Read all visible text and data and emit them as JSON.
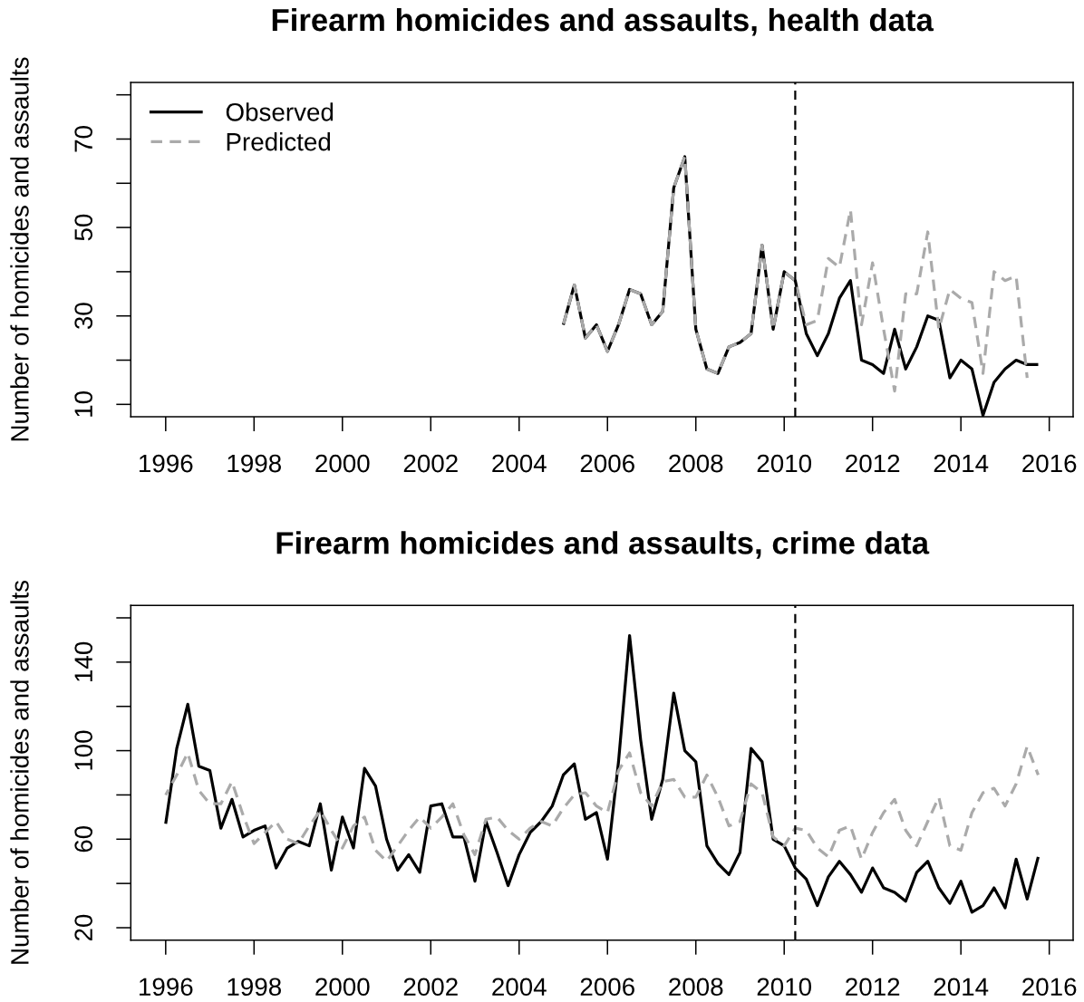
{
  "chart_data": [
    {
      "type": "line",
      "title": "Firearm homicides and assaults, health data",
      "ylabel": "Number of homicides and assaults",
      "x": [
        2005,
        2005.25,
        2005.5,
        2005.75,
        2006,
        2006.25,
        2006.5,
        2006.75,
        2007,
        2007.25,
        2007.5,
        2007.75,
        2008,
        2008.25,
        2008.5,
        2008.75,
        2009,
        2009.25,
        2009.5,
        2009.75,
        2010,
        2010.25,
        2010.5,
        2010.75,
        2011,
        2011.25,
        2011.5,
        2011.75,
        2012,
        2012.25,
        2012.5,
        2012.75,
        2013,
        2013.25,
        2013.5,
        2013.75,
        2014,
        2014.25,
        2014.5,
        2014.75,
        2015,
        2015.25,
        2015.5,
        2015.75
      ],
      "series": [
        {
          "name": "Observed",
          "color": "#000000",
          "line_style": "solid",
          "values": [
            28,
            37,
            25,
            28,
            22,
            28,
            36,
            35,
            28,
            31,
            59,
            66,
            27,
            18,
            17,
            23,
            24,
            26,
            46,
            27,
            40,
            38,
            26,
            21,
            26,
            34,
            38,
            20,
            19,
            17,
            27,
            18,
            23,
            30,
            29,
            16,
            20,
            18,
            7.5,
            15,
            18,
            20,
            19,
            19
          ]
        },
        {
          "name": "Predicted",
          "color": "#aaaaaa",
          "line_style": "dashed",
          "values": [
            28,
            37,
            25,
            28,
            22,
            28,
            36,
            35,
            28,
            31,
            59,
            66,
            27,
            18,
            17,
            23,
            24,
            26,
            46,
            27,
            40,
            38,
            28,
            29,
            43,
            41,
            54,
            28,
            42,
            27,
            13,
            35,
            35,
            49,
            27,
            36,
            34,
            33,
            17,
            40,
            38,
            39,
            16,
            null
          ]
        }
      ],
      "xlim": [
        1995.21,
        2016.54
      ],
      "ylim": [
        7.2,
        82.8
      ],
      "xticks": [
        1996,
        1998,
        2000,
        2002,
        2004,
        2006,
        2008,
        2010,
        2012,
        2014,
        2016
      ],
      "yticks": [
        10,
        {
          "value": 20,
          "label": null
        },
        30,
        {
          "value": 40,
          "label": null
        },
        50,
        {
          "value": 60,
          "label": null
        },
        70,
        {
          "value": 80,
          "label": null
        }
      ],
      "ref_lines": [
        {
          "axis": "x",
          "value": 2010.25,
          "color": "#000000",
          "line_style": "dashed"
        }
      ],
      "legend": "top left"
    },
    {
      "type": "line",
      "title": "Firearm homicides and assaults, crime data",
      "ylabel": "Number of homicides and assaults",
      "x": [
        1996,
        1996.25,
        1996.5,
        1996.75,
        1997,
        1997.25,
        1997.5,
        1997.75,
        1998,
        1998.25,
        1998.5,
        1998.75,
        1999,
        1999.25,
        1999.5,
        1999.75,
        2000,
        2000.25,
        2000.5,
        2000.75,
        2001,
        2001.25,
        2001.5,
        2001.75,
        2002,
        2002.25,
        2002.5,
        2002.75,
        2003,
        2003.25,
        2003.5,
        2003.75,
        2004,
        2004.25,
        2004.5,
        2004.75,
        2005,
        2005.25,
        2005.5,
        2005.75,
        2006,
        2006.25,
        2006.5,
        2006.75,
        2007,
        2007.25,
        2007.5,
        2007.75,
        2008,
        2008.25,
        2008.5,
        2008.75,
        2009,
        2009.25,
        2009.5,
        2009.75,
        2010,
        2010.25,
        2010.5,
        2010.75,
        2011,
        2011.25,
        2011.5,
        2011.75,
        2012,
        2012.25,
        2012.5,
        2012.75,
        2013,
        2013.25,
        2013.5,
        2013.75,
        2014,
        2014.25,
        2014.5,
        2014.75,
        2015,
        2015.25,
        2015.5,
        2015.75
      ],
      "series": [
        {
          "color": "#000000",
          "line_style": "solid",
          "values": [
            67,
            101,
            121,
            93,
            91,
            65,
            78,
            61,
            64,
            66,
            47,
            56,
            59,
            57,
            76,
            46,
            70,
            56,
            92,
            84,
            60,
            46,
            53,
            45,
            75,
            76,
            61,
            61,
            41,
            68,
            54,
            39,
            53,
            63,
            68,
            75,
            89,
            94,
            69,
            72,
            51,
            95,
            152,
            105,
            69,
            87,
            126,
            100,
            95,
            57,
            49,
            44,
            54,
            101,
            95,
            60,
            57,
            47,
            42,
            30,
            43,
            50,
            44,
            36,
            47,
            38,
            36,
            32,
            45,
            50,
            38,
            31,
            41,
            27,
            30,
            38,
            29,
            51,
            33,
            52
          ]
        },
        {
          "color": "#aaaaaa",
          "line_style": "dashed",
          "values": [
            80,
            89,
            99,
            82,
            76,
            76,
            86,
            71,
            58,
            63,
            68,
            60,
            58,
            66,
            73,
            64,
            56,
            66,
            70,
            55,
            50,
            57,
            64,
            70,
            65,
            70,
            76,
            62,
            53,
            69,
            70,
            64,
            60,
            65,
            68,
            66,
            74,
            80,
            81,
            75,
            72,
            91,
            99,
            81,
            75,
            86,
            87,
            79,
            79,
            89,
            79,
            66,
            68,
            85,
            81,
            61,
            57,
            65,
            64,
            56,
            52,
            64,
            66,
            51,
            63,
            72,
            78,
            64,
            57,
            68,
            79,
            57,
            55,
            72,
            81,
            83,
            75,
            85,
            102,
            89
          ]
        }
      ],
      "xlim": [
        1995.21,
        2016.54
      ],
      "ylim": [
        14.4,
        165.6
      ],
      "xticks": [
        1996,
        1998,
        2000,
        2002,
        2004,
        2006,
        2008,
        2010,
        2012,
        2014,
        2016
      ],
      "yticks": [
        20,
        {
          "value": 40,
          "label": null
        },
        60,
        {
          "value": 80,
          "label": null
        },
        100,
        {
          "value": 120,
          "label": null
        },
        140,
        {
          "value": 160,
          "label": null
        }
      ],
      "ref_lines": [
        {
          "axis": "x",
          "value": 2010.25,
          "color": "#000000",
          "line_style": "dashed"
        }
      ],
      "legend": false
    }
  ]
}
